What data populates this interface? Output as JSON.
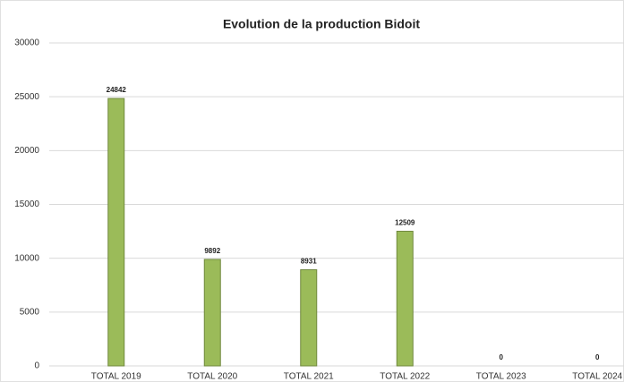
{
  "chart_data": {
    "type": "bar",
    "title": "Evolution de la production Bidoit",
    "categories": [
      "TOTAL 2019",
      "TOTAL 2020",
      "TOTAL 2021",
      "TOTAL 2022",
      "TOTAL 2023",
      "TOTAL 2024"
    ],
    "values": [
      24842,
      9892,
      8931,
      12509,
      0,
      0
    ],
    "color": "#9bbb59",
    "ylim": [
      0,
      30000
    ],
    "yticks": [
      0,
      5000,
      10000,
      15000,
      20000,
      25000,
      30000
    ],
    "grid": true
  }
}
